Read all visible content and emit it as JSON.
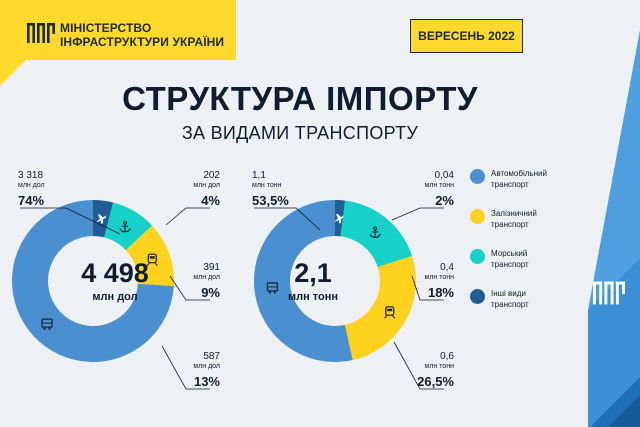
{
  "header": {
    "ministry_line1": "МІНІСТЕРСТВО",
    "ministry_line2": "ІНФРАСТРУКТУРИ УКРАЇНИ",
    "date": "ВЕРЕСЕНЬ 2022"
  },
  "title": "СТРУКТУРА ІМПОРТУ",
  "subtitle": "ЗА ВИДАМИ ТРАНСПОРТУ",
  "colors": {
    "road": "#4a90d0",
    "rail": "#ffd21f",
    "sea": "#16d1c8",
    "other": "#1f5d94",
    "brand_yellow": "#ffd92c",
    "brand_blue": "#3a8fd6"
  },
  "icons": {
    "road": "truck-icon",
    "rail": "train-icon",
    "sea": "anchor-icon",
    "other": "airplane-icon"
  },
  "chart_data": [
    {
      "type": "pie",
      "center_value": "4 498",
      "center_unit": "млн дол",
      "slices": [
        {
          "key": "road",
          "value_label": "3 318",
          "unit": "млн дол",
          "percent": 74,
          "percent_label": "74%"
        },
        {
          "key": "rail",
          "value_label": "587",
          "unit": "млн дол",
          "percent": 13,
          "percent_label": "13%"
        },
        {
          "key": "sea",
          "value_label": "391",
          "unit": "млн дол",
          "percent": 9,
          "percent_label": "9%"
        },
        {
          "key": "other",
          "value_label": "202",
          "unit": "млн дол",
          "percent": 4,
          "percent_label": "4%"
        }
      ]
    },
    {
      "type": "pie",
      "center_value": "2,1",
      "center_unit": "млн тонн",
      "slices": [
        {
          "key": "road",
          "value_label": "1,1",
          "unit": "млн тонн",
          "percent": 53.5,
          "percent_label": "53,5%"
        },
        {
          "key": "rail",
          "value_label": "0,6",
          "unit": "млн тонн",
          "percent": 26.5,
          "percent_label": "26,5%"
        },
        {
          "key": "sea",
          "value_label": "0,4",
          "unit": "млн тонн",
          "percent": 18,
          "percent_label": "18%"
        },
        {
          "key": "other",
          "value_label": "0,04",
          "unit": "млн тонн",
          "percent": 2,
          "percent_label": "2%"
        }
      ]
    }
  ],
  "legend": [
    {
      "key": "road",
      "line1": "Автомобільний",
      "line2": "транспорт"
    },
    {
      "key": "rail",
      "line1": "Залізничний",
      "line2": "транспорт"
    },
    {
      "key": "sea",
      "line1": "Морський",
      "line2": "транспорт"
    },
    {
      "key": "other",
      "line1": "Інші види",
      "line2": "транспорт"
    }
  ]
}
